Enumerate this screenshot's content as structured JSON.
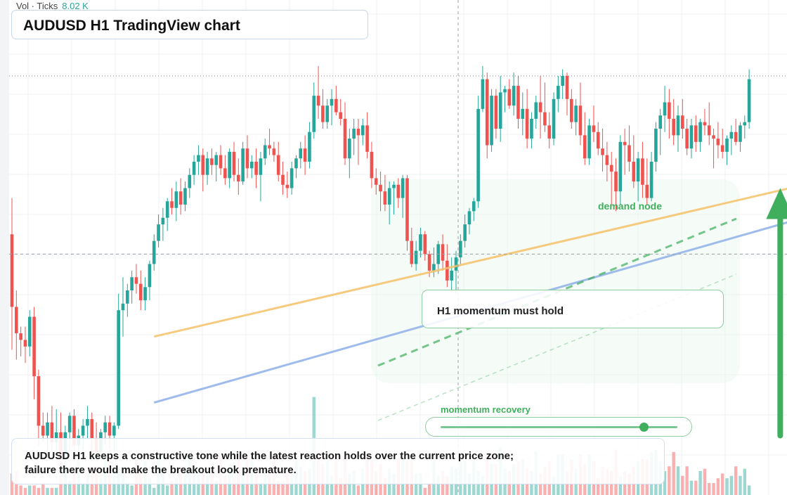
{
  "header": {
    "vol_label": "Vol · Ticks",
    "vol_value": "8.02 K"
  },
  "title": "AUDUSD H1 TradingView chart",
  "annotations": {
    "box_note": "H1 momentum must hold",
    "demand_label": "demand node",
    "slider_label": "momentum recovery",
    "slider_level": 0.86
  },
  "summary": "AUDUSD H1 keeps a constructive tone while the latest reaction holds over the current price zone; failure there would make the breakout look premature.",
  "colors": {
    "up": "#26a69a",
    "down": "#ef5350",
    "trend_upper": "#f5c26b",
    "trend_lower": "#8fb0ea",
    "accent_green": "#3fae5d"
  },
  "chart_data": {
    "type": "candlestick",
    "symbol": "AUDUSD",
    "timeframe": "H1",
    "candles": [
      [
        69,
        80,
        34,
        47
      ],
      [
        47,
        52,
        31,
        39
      ],
      [
        39,
        41,
        32,
        37
      ],
      [
        37,
        41,
        30,
        35
      ],
      [
        35,
        46,
        32,
        44
      ],
      [
        44,
        47,
        19,
        26
      ],
      [
        26,
        28,
        5,
        11
      ],
      [
        11,
        15,
        6,
        8
      ],
      [
        8,
        15,
        1,
        12
      ],
      [
        12,
        17,
        3,
        6
      ],
      [
        6,
        16,
        3,
        9
      ],
      [
        9,
        15,
        -1,
        2
      ],
      [
        2,
        11,
        -4,
        9
      ],
      [
        9,
        15,
        2,
        14
      ],
      [
        14,
        16,
        1,
        5
      ],
      [
        5,
        10,
        1,
        8
      ],
      [
        8,
        13,
        4,
        11
      ],
      [
        11,
        17,
        7,
        13
      ],
      [
        13,
        15,
        1,
        7
      ],
      [
        7,
        12,
        1,
        3
      ],
      [
        3,
        10,
        1,
        9
      ],
      [
        9,
        14,
        5,
        12
      ],
      [
        12,
        14,
        4,
        8
      ],
      [
        8,
        12,
        3,
        11
      ],
      [
        11,
        51,
        10,
        46
      ],
      [
        46,
        56,
        38,
        48
      ],
      [
        48,
        54,
        44,
        52
      ],
      [
        52,
        58,
        48,
        56
      ],
      [
        56,
        60,
        51,
        54
      ],
      [
        54,
        58,
        46,
        49
      ],
      [
        49,
        56,
        46,
        53
      ],
      [
        53,
        61,
        49,
        60
      ],
      [
        60,
        69,
        58,
        67
      ],
      [
        67,
        75,
        65,
        72
      ],
      [
        72,
        77,
        67,
        74
      ],
      [
        74,
        80,
        70,
        79
      ],
      [
        79,
        83,
        75,
        77
      ],
      [
        77,
        85,
        73,
        82
      ],
      [
        82,
        86,
        75,
        78
      ],
      [
        78,
        85,
        76,
        83
      ],
      [
        83,
        89,
        80,
        87
      ],
      [
        87,
        93,
        84,
        91
      ],
      [
        91,
        96,
        87,
        93
      ],
      [
        93,
        95,
        82,
        87
      ],
      [
        87,
        94,
        84,
        92
      ],
      [
        92,
        95,
        87,
        90
      ],
      [
        90,
        94,
        85,
        93
      ],
      [
        93,
        96,
        87,
        89
      ],
      [
        89,
        93,
        84,
        86
      ],
      [
        86,
        95,
        83,
        94
      ],
      [
        94,
        97,
        85,
        87
      ],
      [
        87,
        92,
        81,
        85
      ],
      [
        85,
        97,
        84,
        95
      ],
      [
        95,
        99,
        86,
        89
      ],
      [
        89,
        93,
        86,
        91
      ],
      [
        91,
        95,
        83,
        87
      ],
      [
        87,
        94,
        79,
        92
      ],
      [
        92,
        98,
        90,
        96
      ],
      [
        96,
        101,
        93,
        95
      ],
      [
        95,
        97,
        91,
        93
      ],
      [
        93,
        97,
        85,
        87
      ],
      [
        87,
        91,
        81,
        84
      ],
      [
        84,
        88,
        80,
        83
      ],
      [
        83,
        91,
        81,
        89
      ],
      [
        89,
        93,
        86,
        92
      ],
      [
        92,
        97,
        89,
        95
      ],
      [
        95,
        99,
        87,
        91
      ],
      [
        91,
        103,
        89,
        100
      ],
      [
        100,
        115,
        98,
        111
      ],
      [
        111,
        120,
        104,
        108
      ],
      [
        108,
        113,
        101,
        103
      ],
      [
        103,
        110,
        101,
        108
      ],
      [
        108,
        113,
        102,
        110
      ],
      [
        110,
        114,
        105,
        106
      ],
      [
        106,
        110,
        102,
        104
      ],
      [
        104,
        109,
        90,
        92
      ],
      [
        92,
        101,
        86,
        98
      ],
      [
        98,
        104,
        93,
        101
      ],
      [
        101,
        104,
        90,
        99
      ],
      [
        99,
        104,
        96,
        102
      ],
      [
        102,
        106,
        92,
        94
      ],
      [
        94,
        97,
        83,
        86
      ],
      [
        86,
        89,
        81,
        84
      ],
      [
        84,
        88,
        76,
        82
      ],
      [
        82,
        87,
        76,
        78
      ],
      [
        78,
        85,
        72,
        83
      ],
      [
        83,
        85,
        75,
        84
      ],
      [
        84,
        86,
        77,
        80
      ],
      [
        80,
        87,
        74,
        86
      ],
      [
        86,
        87,
        64,
        67
      ],
      [
        67,
        71,
        59,
        60
      ],
      [
        60,
        67,
        58,
        64
      ],
      [
        64,
        71,
        62,
        69
      ],
      [
        69,
        70,
        61,
        63
      ],
      [
        63,
        64,
        56,
        58
      ],
      [
        58,
        65,
        56,
        60
      ],
      [
        60,
        67,
        57,
        66
      ],
      [
        66,
        69,
        58,
        61
      ],
      [
        61,
        66,
        53,
        55
      ],
      [
        55,
        62,
        52,
        58
      ],
      [
        58,
        64,
        51,
        62
      ],
      [
        62,
        69,
        60,
        67
      ],
      [
        67,
        75,
        65,
        72
      ],
      [
        72,
        77,
        69,
        76
      ],
      [
        76,
        80,
        73,
        79
      ],
      [
        79,
        111,
        77,
        107
      ],
      [
        107,
        120,
        106,
        116
      ],
      [
        116,
        118,
        92,
        96
      ],
      [
        96,
        113,
        94,
        111
      ],
      [
        111,
        113,
        98,
        101
      ],
      [
        101,
        117,
        97,
        112
      ],
      [
        112,
        114,
        106,
        113
      ],
      [
        113,
        116,
        107,
        108
      ],
      [
        108,
        118,
        105,
        114
      ],
      [
        114,
        117,
        101,
        104
      ],
      [
        104,
        112,
        99,
        107
      ],
      [
        107,
        113,
        95,
        98
      ],
      [
        98,
        106,
        95,
        104
      ],
      [
        104,
        111,
        101,
        109
      ],
      [
        109,
        117,
        98,
        106
      ],
      [
        106,
        115,
        100,
        102
      ],
      [
        102,
        106,
        95,
        98
      ],
      [
        98,
        112,
        96,
        110
      ],
      [
        110,
        117,
        106,
        114
      ],
      [
        114,
        119,
        110,
        117
      ],
      [
        117,
        118,
        105,
        110
      ],
      [
        110,
        113,
        101,
        103
      ],
      [
        103,
        110,
        99,
        108
      ],
      [
        108,
        115,
        96,
        99
      ],
      [
        99,
        106,
        90,
        92
      ],
      [
        92,
        104,
        90,
        102
      ],
      [
        102,
        108,
        97,
        100
      ],
      [
        100,
        103,
        93,
        95
      ],
      [
        95,
        101,
        88,
        93
      ],
      [
        93,
        97,
        85,
        90
      ],
      [
        90,
        94,
        78,
        88
      ],
      [
        88,
        92,
        76,
        82
      ],
      [
        82,
        99,
        78,
        97
      ],
      [
        97,
        101,
        87,
        96
      ],
      [
        96,
        102,
        88,
        91
      ],
      [
        91,
        99,
        83,
        85
      ],
      [
        85,
        94,
        79,
        92
      ],
      [
        92,
        97,
        80,
        84
      ],
      [
        84,
        92,
        78,
        80
      ],
      [
        80,
        94,
        79,
        91
      ],
      [
        91,
        103,
        88,
        101
      ],
      [
        101,
        107,
        93,
        105
      ],
      [
        105,
        114,
        100,
        109
      ],
      [
        109,
        113,
        98,
        104
      ],
      [
        104,
        110,
        96,
        99
      ],
      [
        99,
        108,
        94,
        105
      ],
      [
        105,
        110,
        98,
        101
      ],
      [
        101,
        104,
        93,
        95
      ],
      [
        95,
        104,
        92,
        102
      ],
      [
        102,
        105,
        94,
        97
      ],
      [
        97,
        104,
        94,
        103
      ],
      [
        103,
        107,
        99,
        102
      ],
      [
        102,
        109,
        96,
        99
      ],
      [
        99,
        101,
        89,
        98
      ],
      [
        98,
        103,
        92,
        96
      ],
      [
        96,
        101,
        92,
        94
      ],
      [
        94,
        99,
        90,
        98
      ],
      [
        98,
        102,
        93,
        100
      ],
      [
        100,
        104,
        96,
        97
      ],
      [
        97,
        103,
        94,
        102
      ],
      [
        102,
        105,
        98,
        103
      ],
      [
        103,
        119,
        101,
        116
      ]
    ],
    "volumes": [
      9,
      10,
      4,
      3,
      4,
      4,
      3,
      5,
      3,
      3,
      3,
      8,
      11,
      6,
      10,
      14,
      5,
      9,
      12,
      12,
      7,
      15,
      16,
      10,
      11,
      9,
      5,
      4,
      14,
      9,
      14,
      7,
      3,
      17,
      10,
      4,
      6,
      7,
      12,
      12,
      16,
      10,
      12,
      10,
      8,
      10,
      6,
      16,
      8,
      13,
      7,
      17,
      12,
      17,
      14,
      9,
      5,
      9,
      9,
      17,
      6,
      6,
      11,
      8,
      15,
      12,
      10,
      11,
      41,
      18,
      13,
      14,
      8,
      16,
      7,
      16,
      9,
      10,
      4,
      11,
      16,
      14,
      10,
      13,
      7,
      11,
      9,
      15,
      15,
      14,
      15,
      9,
      9,
      3,
      5,
      14,
      8,
      10,
      8,
      12,
      11,
      15,
      14,
      9,
      15,
      10,
      8,
      16,
      13,
      13,
      20,
      11,
      10,
      13,
      14,
      15,
      11,
      10,
      18,
      9,
      12,
      14,
      8,
      17,
      17,
      10,
      15,
      11,
      17,
      13,
      17,
      14,
      7,
      12,
      11,
      10,
      19,
      8,
      10,
      9,
      12,
      14,
      15,
      15,
      18,
      19,
      14,
      10,
      12,
      18,
      12,
      8,
      12,
      6,
      6,
      10,
      11,
      5,
      5,
      7,
      9,
      7,
      8,
      12,
      8,
      11,
      4
    ],
    "price_range": [
      -10,
      140
    ],
    "reference_levels": {
      "horizontal_dotted": 117,
      "horizontal_dashed": 63
    },
    "trendlines": [
      {
        "start": [
          32,
          38
        ],
        "end": [
          207,
          93
        ]
      },
      {
        "start": [
          32,
          18
        ],
        "end": [
          207,
          85
        ]
      }
    ],
    "arrow": {
      "direction": "up",
      "at_index": 173,
      "from": 8,
      "to": 83
    }
  }
}
